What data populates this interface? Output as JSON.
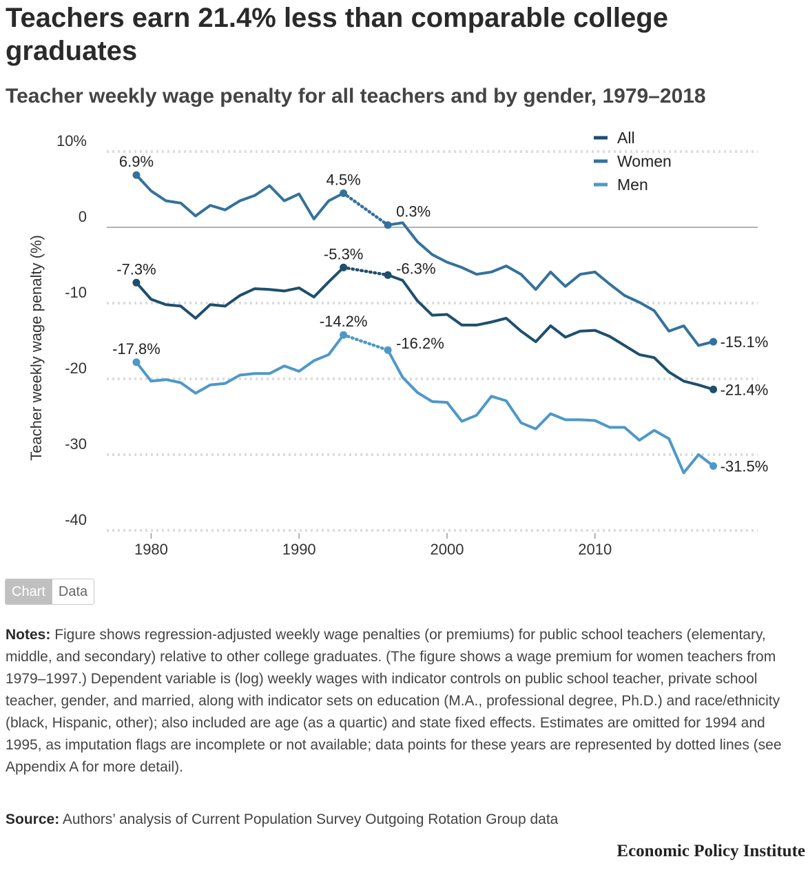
{
  "header": {
    "title": "Teachers earn 21.4% less than comparable college graduates",
    "subtitle": "Teacher weekly wage penalty for all teachers and by gender, 1979–2018"
  },
  "toggle": {
    "chart_label": "Chart",
    "data_label": "Data"
  },
  "notes": {
    "label": "Notes:",
    "text": "Figure shows regression-adjusted weekly wage penalties (or premiums) for public school teachers (elementary, middle, and secondary) relative to other college graduates. (The figure shows a wage premium for women teachers from 1979–1997.) Dependent variable is (log) weekly wages with indicator controls on public school teacher, private school teacher, gender, and married, along with indicator sets on education (M.A., professional degree, Ph.D.) and race/ethnicity (black, Hispanic, other); also included are age (as a quartic) and state fixed effects. Estimates are omitted for 1994 and 1995, as imputation flags are incomplete or not available; data points for these years are represented by dotted lines (see Appendix A for more detail)."
  },
  "source": {
    "label": "Source:",
    "text": "Authors’ analysis of Current Population Survey Outgoing Rotation Group data"
  },
  "brand": "Economic Policy Institute",
  "colors": {
    "all": "#1e4f6e",
    "women": "#34729c",
    "men": "#4e98c9",
    "grid": "#dcdcdc",
    "zero_line": "#9a9a9a"
  },
  "chart_data": {
    "type": "line",
    "title": "Teachers earn 21.4% less than comparable college graduates",
    "subtitle": "Teacher weekly wage penalty for all teachers and by gender, 1979–2018",
    "xlabel": "",
    "ylabel": "Teacher weekly wage penalty (%)",
    "xlim": [
      1977,
      2021
    ],
    "ylim": [
      -40,
      10
    ],
    "x_ticks": [
      1980,
      1990,
      2000,
      2010
    ],
    "y_ticks": [
      {
        "value": 10,
        "label": "10%"
      },
      {
        "value": 0,
        "label": "0"
      },
      {
        "value": -10,
        "label": "-10"
      },
      {
        "value": -20,
        "label": "-20"
      },
      {
        "value": -30,
        "label": "-30"
      },
      {
        "value": -40,
        "label": "-40"
      }
    ],
    "grid": true,
    "legend_position": "top-right",
    "gap_years": [
      1994,
      1995
    ],
    "x": [
      1979,
      1980,
      1981,
      1982,
      1983,
      1984,
      1985,
      1986,
      1987,
      1988,
      1989,
      1990,
      1991,
      1992,
      1993,
      1996,
      1997,
      1998,
      1999,
      2000,
      2001,
      2002,
      2003,
      2004,
      2005,
      2006,
      2007,
      2008,
      2009,
      2010,
      2011,
      2012,
      2013,
      2014,
      2015,
      2016,
      2017,
      2018
    ],
    "series": [
      {
        "name": "All",
        "key": "all",
        "values": [
          -7.3,
          -9.5,
          -10.2,
          -10.4,
          -12.0,
          -10.2,
          -10.4,
          -9.0,
          -8.1,
          -8.2,
          -8.4,
          -8.0,
          -9.2,
          -7.2,
          -5.3,
          -6.3,
          -7.0,
          -9.7,
          -11.6,
          -11.5,
          -12.9,
          -12.9,
          -12.5,
          -12.0,
          -13.7,
          -15.1,
          -13.0,
          -14.5,
          -13.7,
          -13.6,
          -14.4,
          -15.6,
          -16.8,
          -17.2,
          -19.1,
          -20.3,
          -20.8,
          -21.4
        ],
        "labels": [
          {
            "x": 1979,
            "text": "-7.3%",
            "pos": "above"
          },
          {
            "x": 1993,
            "text": "-5.3%",
            "pos": "above"
          },
          {
            "x": 1996,
            "text": "-6.3%",
            "pos": "right"
          },
          {
            "x": 2018,
            "text": "-21.4%",
            "pos": "end"
          }
        ]
      },
      {
        "name": "Women",
        "key": "women",
        "values": [
          6.9,
          4.8,
          3.5,
          3.2,
          1.5,
          2.9,
          2.3,
          3.5,
          4.2,
          5.5,
          3.5,
          4.4,
          1.1,
          3.5,
          4.5,
          0.3,
          0.6,
          -1.9,
          -3.6,
          -4.6,
          -5.3,
          -6.2,
          -5.9,
          -5.1,
          -6.2,
          -8.2,
          -5.9,
          -7.8,
          -6.2,
          -5.9,
          -7.5,
          -9.0,
          -9.9,
          -11.0,
          -13.7,
          -13.0,
          -15.6,
          -15.1
        ],
        "labels": [
          {
            "x": 1979,
            "text": "6.9%",
            "pos": "above"
          },
          {
            "x": 1993,
            "text": "4.5%",
            "pos": "above"
          },
          {
            "x": 1996,
            "text": "0.3%",
            "pos": "above-right"
          },
          {
            "x": 2018,
            "text": "-15.1%",
            "pos": "end"
          }
        ]
      },
      {
        "name": "Men",
        "key": "men",
        "values": [
          -17.8,
          -20.3,
          -20.1,
          -20.5,
          -21.9,
          -20.8,
          -20.6,
          -19.5,
          -19.3,
          -19.3,
          -18.3,
          -19.0,
          -17.6,
          -16.8,
          -14.2,
          -16.2,
          -19.8,
          -21.8,
          -23.0,
          -23.1,
          -25.6,
          -24.8,
          -22.3,
          -22.9,
          -25.8,
          -26.6,
          -24.6,
          -25.4,
          -25.4,
          -25.5,
          -26.4,
          -26.4,
          -28.1,
          -26.8,
          -27.9,
          -32.4,
          -30.0,
          -31.5
        ],
        "labels": [
          {
            "x": 1979,
            "text": "-17.8%",
            "pos": "above"
          },
          {
            "x": 1993,
            "text": "-14.2%",
            "pos": "above"
          },
          {
            "x": 1996,
            "text": "-16.2%",
            "pos": "right"
          },
          {
            "x": 2018,
            "text": "-31.5%",
            "pos": "end"
          }
        ]
      }
    ]
  }
}
